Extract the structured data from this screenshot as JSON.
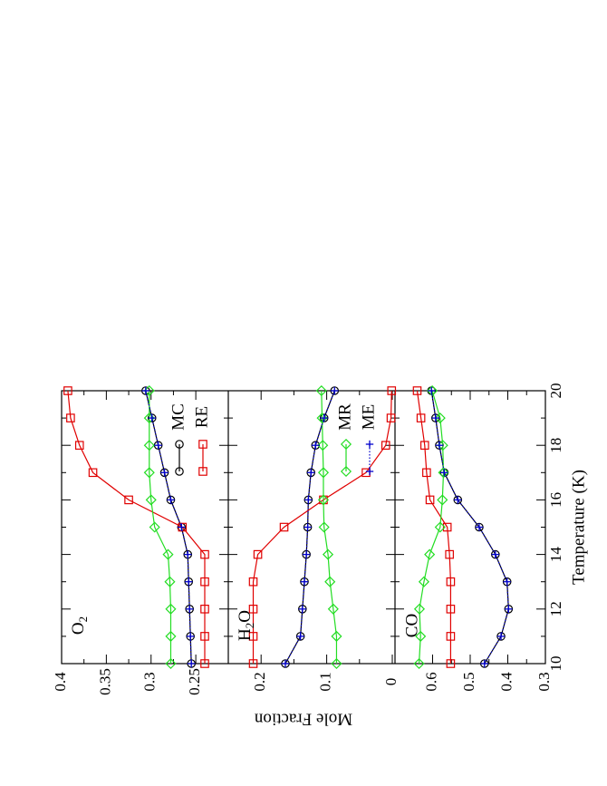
{
  "figure": {
    "xlabel": "Temperature (K)",
    "ylabel": "Mole Fraction",
    "orientation": "rotated 90° counter-clockwise"
  },
  "chart_data": [
    {
      "type": "line",
      "panel_label": "O2",
      "x": [
        10,
        11,
        12,
        13,
        14,
        15,
        16,
        17,
        18,
        19,
        20
      ],
      "xlim": [
        10,
        20
      ],
      "ylim": [
        0.24,
        0.4
      ],
      "yticks": [
        0.25,
        0.3,
        0.35,
        0.4
      ],
      "ytick_labels": [
        "0.25",
        "0.3",
        "0.35",
        "0.4"
      ],
      "legend": [
        "MC",
        "RE"
      ],
      "series": [
        {
          "name": "MC",
          "color": "#000000",
          "marker": "circle",
          "values": [
            0.255,
            0.256,
            0.257,
            0.258,
            0.259,
            0.266,
            0.278,
            0.285,
            0.292,
            0.299,
            0.306
          ]
        },
        {
          "name": "RE",
          "color": "#e00000",
          "marker": "square",
          "values": [
            0.24,
            0.24,
            0.24,
            0.24,
            0.24,
            0.265,
            0.325,
            0.365,
            0.38,
            0.39,
            0.393
          ]
        },
        {
          "name": "MR",
          "color": "#22dd22",
          "marker": "diamond",
          "values": [
            0.278,
            0.278,
            0.278,
            0.279,
            0.281,
            0.296,
            0.3,
            0.302,
            0.302,
            0.302,
            0.302
          ]
        },
        {
          "name": "ME",
          "color": "#0000cc",
          "marker": "plus",
          "values": [
            0.255,
            0.256,
            0.257,
            0.258,
            0.259,
            0.266,
            0.278,
            0.285,
            0.292,
            0.299,
            0.306
          ]
        }
      ]
    },
    {
      "type": "line",
      "panel_label": "H2O",
      "x": [
        10,
        11,
        12,
        13,
        14,
        15,
        16,
        17,
        18,
        19,
        20
      ],
      "xlim": [
        10,
        20
      ],
      "ylim": [
        0,
        0.25
      ],
      "yticks": [
        0,
        0.1,
        0.2
      ],
      "ytick_labels": [
        "0",
        "0.1",
        "0.2"
      ],
      "legend": [
        "MR",
        "ME"
      ],
      "series": [
        {
          "name": "MC",
          "color": "#000000",
          "marker": "circle",
          "values": [
            0.163,
            0.14,
            0.137,
            0.134,
            0.131,
            0.129,
            0.128,
            0.124,
            0.117,
            0.104,
            0.088
          ]
        },
        {
          "name": "RE",
          "color": "#e00000",
          "marker": "square",
          "values": [
            0.212,
            0.212,
            0.212,
            0.212,
            0.205,
            0.165,
            0.105,
            0.04,
            0.01,
            0.002,
            0.001
          ]
        },
        {
          "name": "MR",
          "color": "#22dd22",
          "marker": "diamond",
          "values": [
            0.085,
            0.085,
            0.09,
            0.095,
            0.098,
            0.104,
            0.105,
            0.105,
            0.106,
            0.107,
            0.108
          ]
        },
        {
          "name": "ME",
          "color": "#0000cc",
          "marker": "plus",
          "values": [
            0.163,
            0.14,
            0.137,
            0.134,
            0.131,
            0.129,
            0.128,
            0.124,
            0.117,
            0.104,
            0.088
          ]
        }
      ]
    },
    {
      "type": "line",
      "panel_label": "CO",
      "x": [
        10,
        11,
        12,
        13,
        14,
        15,
        16,
        17,
        18,
        19,
        20
      ],
      "xlim": [
        10,
        20
      ],
      "ylim": [
        0.3,
        0.7
      ],
      "yticks": [
        0.3,
        0.4,
        0.5,
        0.6
      ],
      "ytick_labels": [
        "0.3",
        "0.4",
        "0.5",
        "0.6"
      ],
      "legend": [],
      "series": [
        {
          "name": "MC",
          "color": "#000000",
          "marker": "circle",
          "values": [
            0.462,
            0.418,
            0.398,
            0.402,
            0.433,
            0.476,
            0.533,
            0.569,
            0.582,
            0.592,
            0.603
          ]
        },
        {
          "name": "RE",
          "color": "#e00000",
          "marker": "square",
          "values": [
            0.552,
            0.552,
            0.552,
            0.552,
            0.555,
            0.561,
            0.607,
            0.616,
            0.621,
            0.631,
            0.641
          ]
        },
        {
          "name": "MR",
          "color": "#22dd22",
          "marker": "diamond",
          "values": [
            0.636,
            0.632,
            0.635,
            0.623,
            0.608,
            0.58,
            0.574,
            0.571,
            0.573,
            0.58,
            0.601
          ]
        },
        {
          "name": "ME",
          "color": "#0000cc",
          "marker": "plus",
          "values": [
            0.462,
            0.418,
            0.398,
            0.402,
            0.433,
            0.476,
            0.533,
            0.569,
            0.582,
            0.592,
            0.603
          ]
        }
      ]
    }
  ]
}
